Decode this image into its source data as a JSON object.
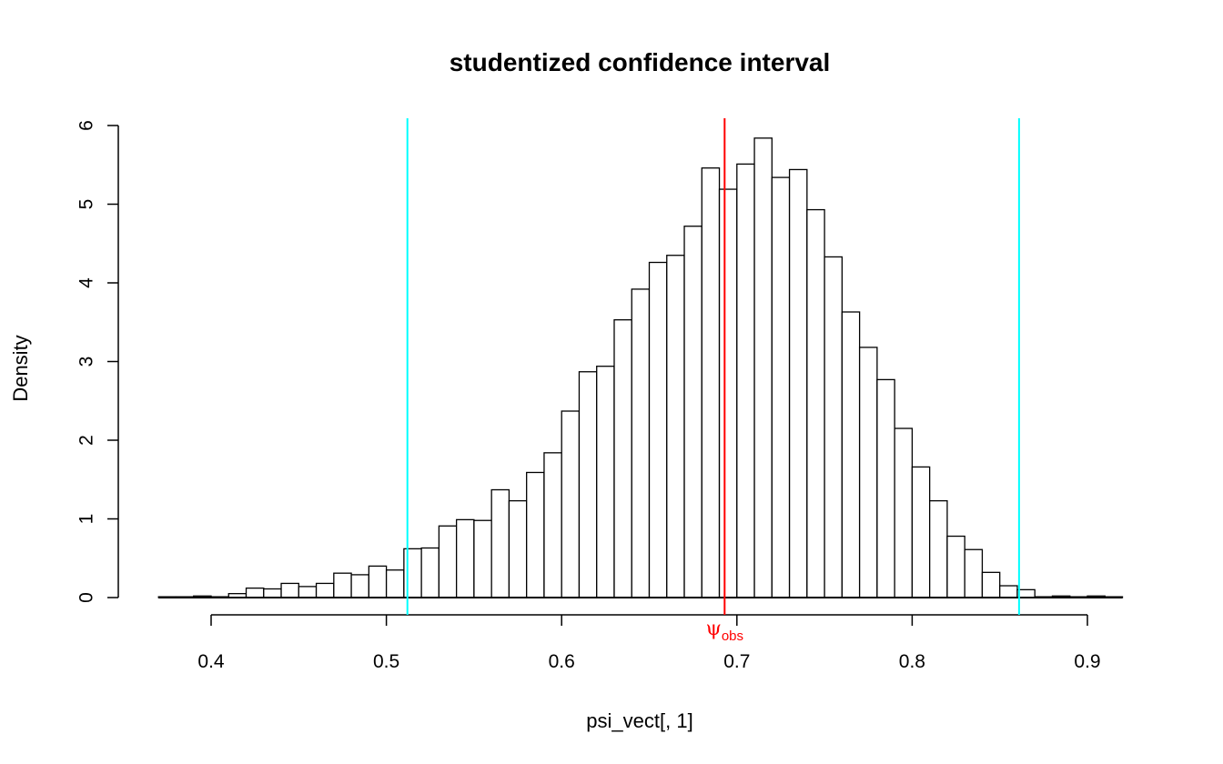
{
  "chart_data": {
    "type": "bar",
    "title": "studentized confidence interval",
    "xlabel": "psi_vect[, 1]",
    "ylabel": "Density",
    "xlim": [
      0.37,
      0.92
    ],
    "ylim": [
      0,
      6
    ],
    "x_ticks": [
      "0.4",
      "0.5",
      "0.6",
      "0.7",
      "0.8",
      "0.9"
    ],
    "y_ticks": [
      "0",
      "1",
      "2",
      "3",
      "4",
      "5",
      "6"
    ],
    "bin_width": 0.01,
    "bin_start": 0.37,
    "values": [
      0.01,
      0.01,
      0.02,
      0.01,
      0.05,
      0.12,
      0.11,
      0.18,
      0.14,
      0.18,
      0.31,
      0.29,
      0.4,
      0.35,
      0.62,
      0.63,
      0.91,
      0.99,
      0.98,
      1.37,
      1.23,
      1.59,
      1.84,
      2.37,
      2.87,
      2.94,
      3.53,
      3.92,
      4.26,
      4.35,
      4.72,
      5.46,
      5.19,
      5.51,
      5.84,
      5.34,
      5.44,
      4.93,
      4.33,
      3.63,
      3.18,
      2.77,
      2.15,
      1.66,
      1.23,
      0.78,
      0.61,
      0.32,
      0.15,
      0.1,
      0.01,
      0.02,
      0.01,
      0.02,
      0.01
    ],
    "annotations": {
      "observed": {
        "value": 0.693,
        "label_main": "ψ",
        "label_sub": "obs",
        "color": "#ff0000"
      },
      "ci_lower": {
        "value": 0.512,
        "color": "#00ffff"
      },
      "ci_upper": {
        "value": 0.861,
        "color": "#00ffff"
      }
    },
    "grid": false,
    "legend": "none"
  }
}
